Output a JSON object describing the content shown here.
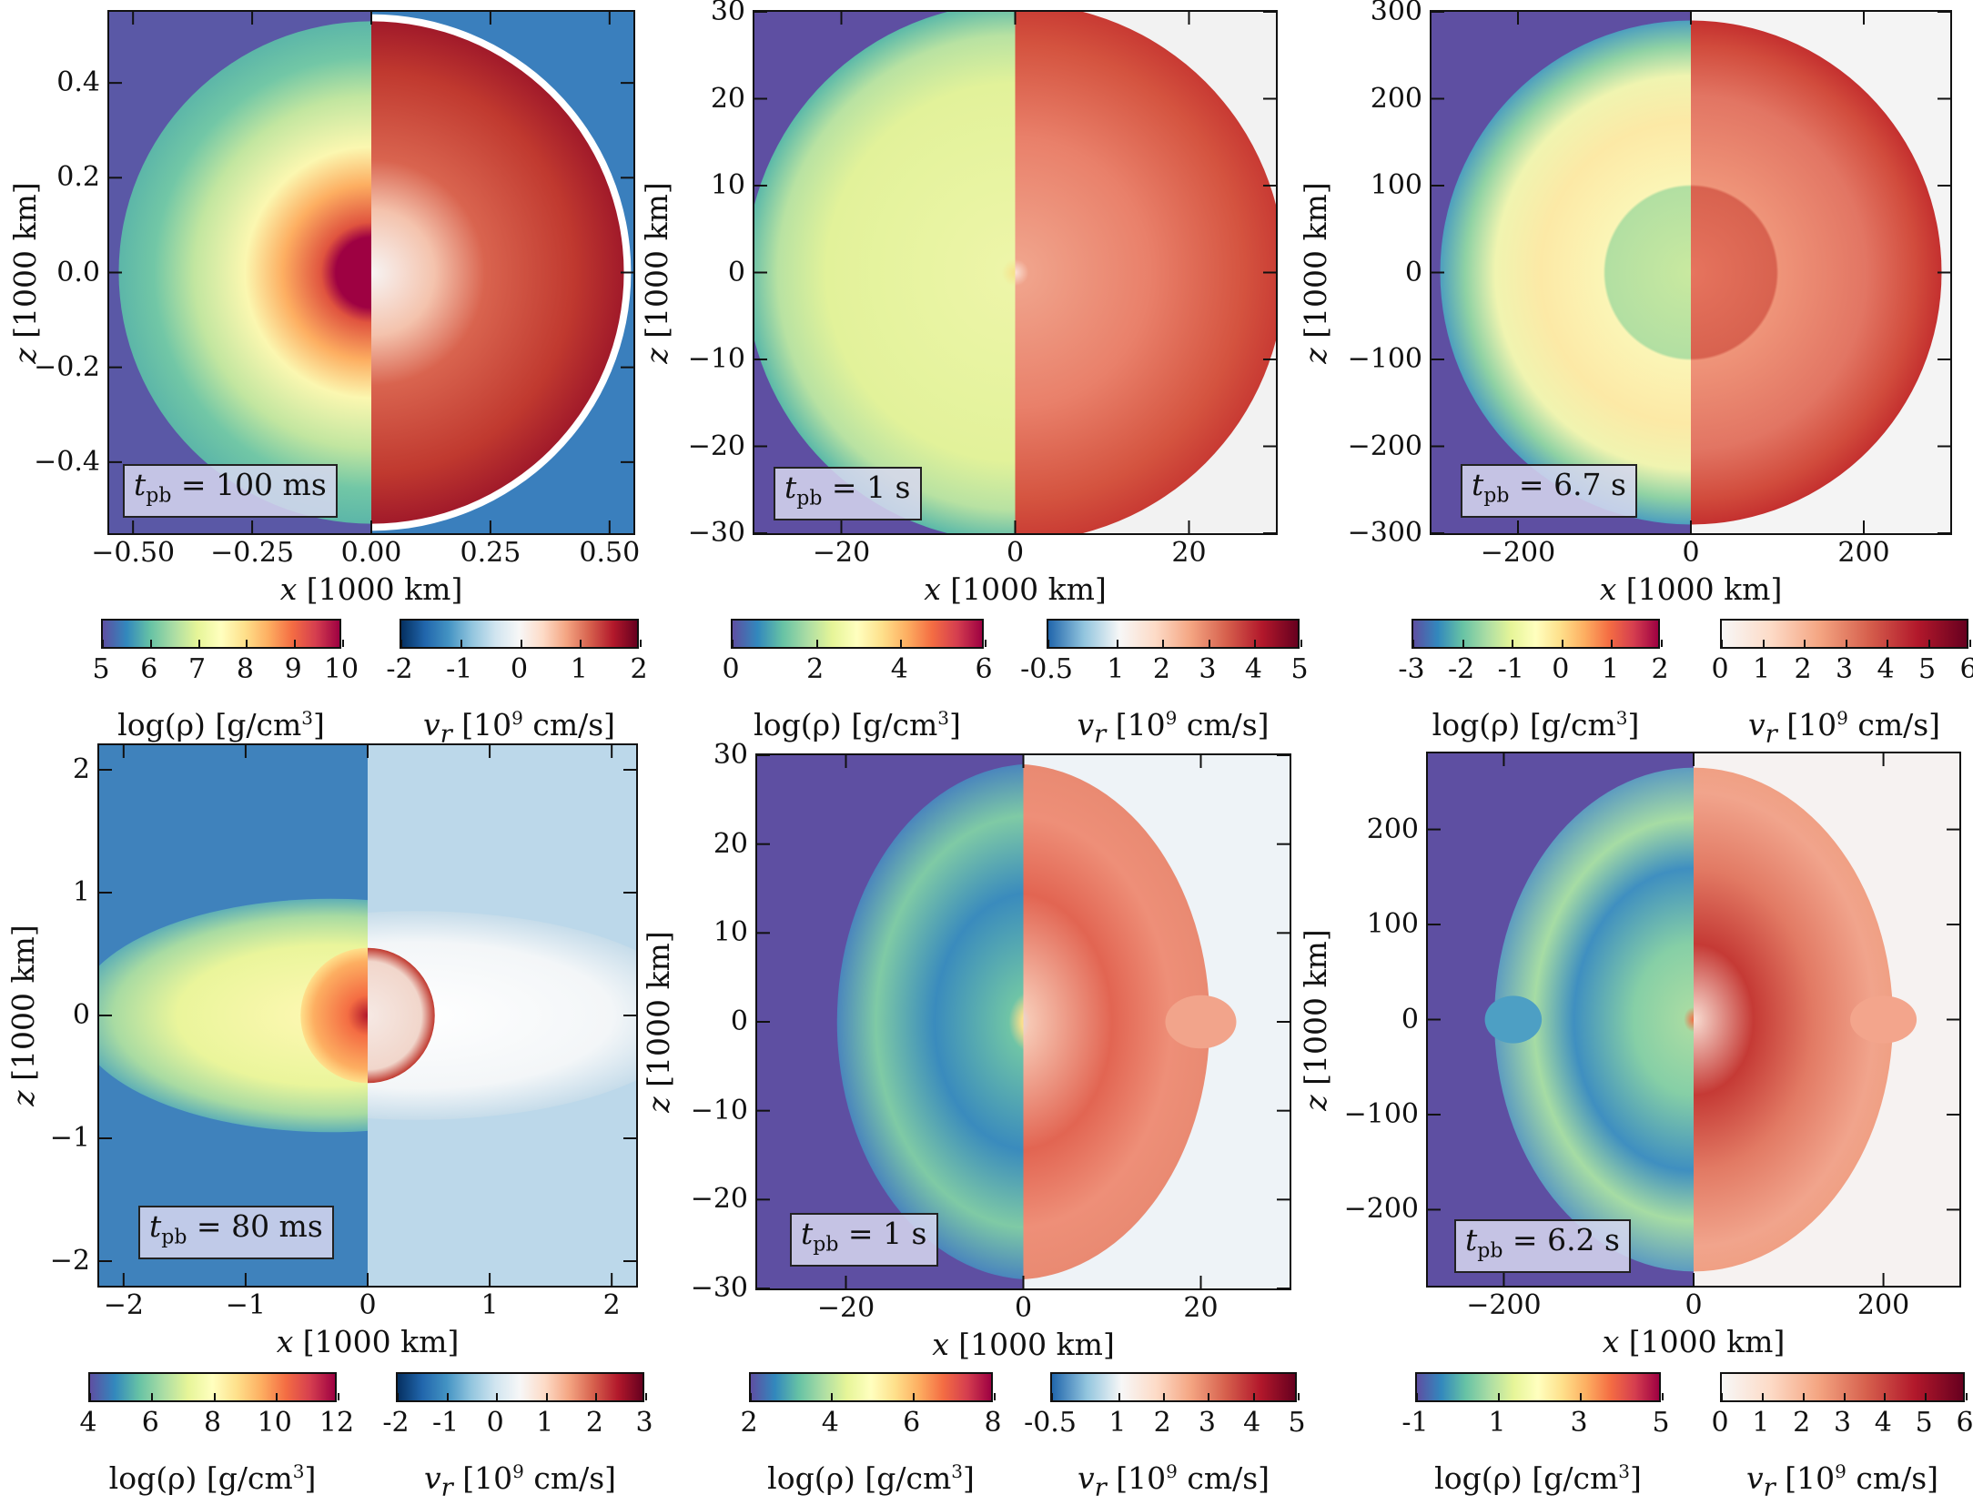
{
  "chart_data": [
    {
      "type": "heatmap",
      "time_label": {
        "var": "t",
        "sub": "pb",
        "value": " = 100 ms"
      },
      "xlabel": "x",
      "ylabel": "z",
      "axis_unit": "[1000 km]",
      "xlim": [
        -0.55,
        0.55
      ],
      "ylim": [
        -0.55,
        0.55
      ],
      "xticks": [
        "−0.50",
        "−0.25",
        "0.00",
        "0.25",
        "0.50"
      ],
      "xtick_values": [
        -0.5,
        -0.25,
        0,
        0.25,
        0.5
      ],
      "yticks": [
        "0.4",
        "0.2",
        "0.0",
        "−0.2",
        "−0.4"
      ],
      "ytick_values": [
        0.4,
        0.2,
        0,
        -0.2,
        -0.4
      ],
      "colorbars": [
        {
          "quantity": "log(ρ)",
          "unit": "[g/cm",
          "unit_sup": "3",
          "unit_end": "]",
          "range": [
            5,
            10
          ],
          "ticks": [
            "5",
            "6",
            "7",
            "8",
            "9",
            "10"
          ],
          "tick_values": [
            5,
            6,
            7,
            8,
            9,
            10
          ],
          "cmap": "Spectral_r"
        },
        {
          "quantity": "v",
          "quantity_sub": "r",
          "unit": "[10",
          "unit_sup": "9",
          "unit_end": " cm/s]",
          "range": [
            -2,
            2
          ],
          "ticks": [
            "-2",
            "-1",
            "0",
            "1",
            "2"
          ],
          "tick_values": [
            -2,
            -1,
            0,
            1,
            2
          ],
          "cmap": "RdBu_r"
        }
      ]
    },
    {
      "type": "heatmap",
      "time_label": {
        "var": "t",
        "sub": "pb",
        "value": " = 1 s"
      },
      "xlabel": "x",
      "ylabel": "z",
      "axis_unit": "[1000 km]",
      "xlim": [
        -30,
        30
      ],
      "ylim": [
        -30,
        30
      ],
      "xticks": [
        "−20",
        "0",
        "20"
      ],
      "xtick_values": [
        -20,
        0,
        20
      ],
      "yticks": [
        "30",
        "20",
        "10",
        "0",
        "−10",
        "−20",
        "−30"
      ],
      "ytick_values": [
        30,
        20,
        10,
        0,
        -10,
        -20,
        -30
      ],
      "colorbars": [
        {
          "quantity": "log(ρ)",
          "unit": "[g/cm",
          "unit_sup": "3",
          "unit_end": "]",
          "range": [
            0,
            6
          ],
          "ticks": [
            "0",
            "2",
            "4",
            "6"
          ],
          "tick_values": [
            0,
            2,
            4,
            6
          ],
          "cmap": "Spectral_r"
        },
        {
          "quantity": "v",
          "quantity_sub": "r",
          "unit": "[10",
          "unit_sup": "9",
          "unit_end": " cm/s]",
          "range": [
            -0.5,
            5
          ],
          "ticks": [
            "-0.5",
            "1",
            "2",
            "3",
            "4",
            "5"
          ],
          "tick_values": [
            -0.5,
            1,
            2,
            3,
            4,
            5
          ],
          "cmap": "RdBu_r"
        }
      ]
    },
    {
      "type": "heatmap",
      "time_label": {
        "var": "t",
        "sub": "pb",
        "value": " = 6.7 s"
      },
      "xlabel": "x",
      "ylabel": "z",
      "axis_unit": "[1000 km]",
      "xlim": [
        -300,
        300
      ],
      "ylim": [
        -300,
        300
      ],
      "xticks": [
        "−200",
        "0",
        "200"
      ],
      "xtick_values": [
        -200,
        0,
        200
      ],
      "yticks": [
        "300",
        "200",
        "100",
        "0",
        "−100",
        "−200",
        "−300"
      ],
      "ytick_values": [
        300,
        200,
        100,
        0,
        -100,
        -200,
        -300
      ],
      "colorbars": [
        {
          "quantity": "log(ρ)",
          "unit": "[g/cm",
          "unit_sup": "3",
          "unit_end": "]",
          "range": [
            -3,
            2
          ],
          "ticks": [
            "-3",
            "-2",
            "-1",
            "0",
            "1",
            "2"
          ],
          "tick_values": [
            -3,
            -2,
            -1,
            0,
            1,
            2
          ],
          "cmap": "Spectral_r"
        },
        {
          "quantity": "v",
          "quantity_sub": "r",
          "unit": "[10",
          "unit_sup": "9",
          "unit_end": " cm/s]",
          "range": [
            0,
            6
          ],
          "ticks": [
            "0",
            "1",
            "2",
            "3",
            "4",
            "5",
            "6"
          ],
          "tick_values": [
            0,
            1,
            2,
            3,
            4,
            5,
            6
          ],
          "cmap": "Reds"
        }
      ]
    },
    {
      "type": "heatmap",
      "time_label": {
        "var": "t",
        "sub": "pb",
        "value": " = 80 ms"
      },
      "xlabel": "x",
      "ylabel": "z",
      "axis_unit": "[1000 km]",
      "xlim": [
        -2.2,
        2.2
      ],
      "ylim": [
        -2.2,
        2.2
      ],
      "xticks": [
        "−2",
        "−1",
        "0",
        "1",
        "2"
      ],
      "xtick_values": [
        -2,
        -1,
        0,
        1,
        2
      ],
      "yticks": [
        "2",
        "1",
        "0",
        "−1",
        "−2"
      ],
      "ytick_values": [
        2,
        1,
        0,
        -1,
        -2
      ],
      "colorbars": [
        {
          "quantity": "log(ρ)",
          "unit": "[g/cm",
          "unit_sup": "3",
          "unit_end": "]",
          "range": [
            4,
            12
          ],
          "ticks": [
            "4",
            "6",
            "8",
            "10",
            "12"
          ],
          "tick_values": [
            4,
            6,
            8,
            10,
            12
          ],
          "cmap": "Spectral_r"
        },
        {
          "quantity": "v",
          "quantity_sub": "r",
          "unit": "[10",
          "unit_sup": "9",
          "unit_end": " cm/s]",
          "range": [
            -2,
            3
          ],
          "ticks": [
            "-2",
            "-1",
            "0",
            "1",
            "2",
            "3"
          ],
          "tick_values": [
            -2,
            -1,
            0,
            1,
            2,
            3
          ],
          "cmap": "RdBu_r"
        }
      ]
    },
    {
      "type": "heatmap",
      "time_label": {
        "var": "t",
        "sub": "pb",
        "value": " = 1 s"
      },
      "xlabel": "x",
      "ylabel": "z",
      "axis_unit": "[1000 km]",
      "xlim": [
        -30,
        30
      ],
      "ylim": [
        -30,
        30
      ],
      "xticks": [
        "−20",
        "0",
        "20"
      ],
      "xtick_values": [
        -20,
        0,
        20
      ],
      "yticks": [
        "30",
        "20",
        "10",
        "0",
        "−10",
        "−20",
        "−30"
      ],
      "ytick_values": [
        30,
        20,
        10,
        0,
        -10,
        -20,
        -30
      ],
      "colorbars": [
        {
          "quantity": "log(ρ)",
          "unit": "[g/cm",
          "unit_sup": "3",
          "unit_end": "]",
          "range": [
            2,
            8
          ],
          "ticks": [
            "2",
            "4",
            "6",
            "8"
          ],
          "tick_values": [
            2,
            4,
            6,
            8
          ],
          "cmap": "Spectral_r"
        },
        {
          "quantity": "v",
          "quantity_sub": "r",
          "unit": "[10",
          "unit_sup": "9",
          "unit_end": " cm/s]",
          "range": [
            -0.5,
            5
          ],
          "ticks": [
            "-0.5",
            "1",
            "2",
            "3",
            "4",
            "5"
          ],
          "tick_values": [
            -0.5,
            1,
            2,
            3,
            4,
            5
          ],
          "cmap": "RdBu_r"
        }
      ]
    },
    {
      "type": "heatmap",
      "time_label": {
        "var": "t",
        "sub": "pb",
        "value": " = 6.2 s"
      },
      "xlabel": "x",
      "ylabel": "z",
      "axis_unit": "[1000 km]",
      "xlim": [
        -280,
        280
      ],
      "ylim": [
        -280,
        280
      ],
      "xticks": [
        "−200",
        "0",
        "200"
      ],
      "xtick_values": [
        -200,
        0,
        200
      ],
      "yticks": [
        "200",
        "100",
        "0",
        "−100",
        "−200"
      ],
      "ytick_values": [
        200,
        100,
        0,
        -100,
        -200
      ],
      "colorbars": [
        {
          "quantity": "log(ρ)",
          "unit": "[g/cm",
          "unit_sup": "3",
          "unit_end": "]",
          "range": [
            -1,
            5
          ],
          "ticks": [
            "-1",
            "1",
            "3",
            "5"
          ],
          "tick_values": [
            -1,
            1,
            3,
            5
          ],
          "cmap": "Spectral_r"
        },
        {
          "quantity": "v",
          "quantity_sub": "r",
          "unit": "[10",
          "unit_sup": "9",
          "unit_end": " cm/s]",
          "range": [
            0,
            6
          ],
          "ticks": [
            "0",
            "1",
            "2",
            "3",
            "4",
            "5",
            "6"
          ],
          "tick_values": [
            0,
            1,
            2,
            3,
            4,
            5,
            6
          ],
          "cmap": "Reds"
        }
      ]
    }
  ]
}
